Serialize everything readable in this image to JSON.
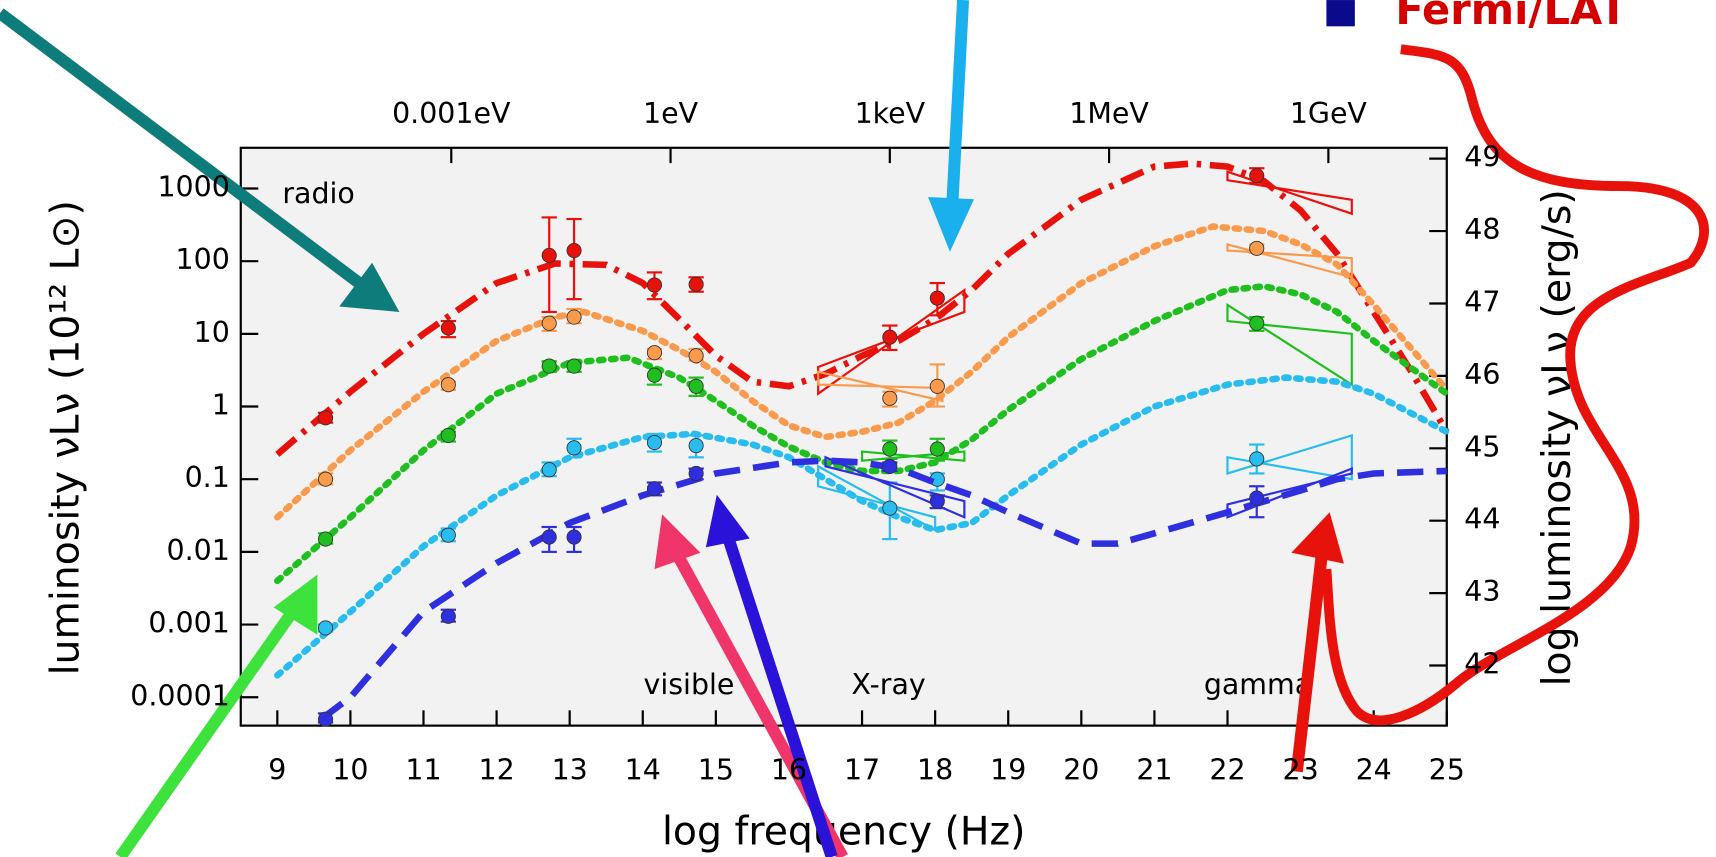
{
  "chart_data": {
    "type": "scatter",
    "x_label": "log frequency (Hz)",
    "y_label": "luminosity νLν (10¹² L⊙)",
    "y2_label": "log luminosity νLν (erg/s)",
    "log_y": true,
    "background": "#f2f2f2",
    "xlim": [
      8.5,
      25
    ],
    "xticks": [
      9,
      10,
      11,
      12,
      13,
      14,
      15,
      16,
      17,
      18,
      19,
      20,
      21,
      22,
      23,
      24,
      25
    ],
    "x2ticks": [
      {
        "value": 11.38,
        "label": "0.001eV"
      },
      {
        "value": 14.38,
        "label": "1eV"
      },
      {
        "value": 17.38,
        "label": "1keV"
      },
      {
        "value": 20.38,
        "label": "1MeV"
      },
      {
        "value": 23.38,
        "label": "1GeV"
      }
    ],
    "ylim": [
      4.07e-05,
      3630
    ],
    "yticks": [
      0.0001,
      0.001,
      0.01,
      0.1,
      1,
      10,
      100,
      1000
    ],
    "y2lim": [
      41.17,
      49.15
    ],
    "y2ticks": [
      42,
      43,
      44,
      45,
      46,
      47,
      48,
      49
    ],
    "annotations": [
      "radio",
      "visible",
      "X-ray",
      "gamma"
    ],
    "legend": {
      "label": "Fermi/LAT",
      "color": "#0a0a8c",
      "text_color": "#d40000"
    },
    "series": [
      {
        "color": "#e8120c",
        "x": [
          9.66,
          11.34,
          12.72,
          13.06,
          14.16,
          14.73,
          17.38,
          18.03,
          22.4
        ],
        "values": [
          0.7,
          12,
          120,
          140,
          47,
          48,
          9,
          31,
          1500
        ],
        "y_low": [
          0.6,
          9,
          20,
          30,
          30,
          38,
          6,
          18,
          1200
        ],
        "y_high": [
          0.82,
          15,
          400,
          380,
          70,
          60,
          13,
          50,
          1900
        ],
        "curve": {
          "dash": "dashdot",
          "x": [
            9,
            10,
            11,
            12,
            12.8,
            13.5,
            14,
            14.5,
            15,
            15.5,
            16,
            16.5,
            17,
            17.5,
            18,
            18.5,
            19,
            20,
            21,
            21.5,
            22,
            22.5,
            23,
            23.5,
            24,
            24.5,
            25
          ],
          "values": [
            0.22,
            1.6,
            10,
            50,
            93,
            89,
            50,
            16,
            5,
            2.2,
            1.9,
            2.8,
            5,
            8,
            16,
            40,
            126,
            700,
            2000,
            2200,
            2000,
            1260,
            500,
            126,
            20,
            3.2,
            0.45
          ]
        },
        "bowties": [
          {
            "x": [
              16.4,
              18.4
            ],
            "lo": [
              1.5,
              20
            ],
            "hi": [
              3.5,
              40
            ]
          },
          {
            "x": [
              22.0,
              23.7
            ],
            "lo": [
              1300,
              450
            ],
            "hi": [
              1700,
              700
            ]
          }
        ]
      },
      {
        "color": "#f99a4c",
        "x": [
          9.66,
          11.34,
          12.72,
          13.06,
          14.16,
          14.73,
          17.38,
          18.03,
          22.4
        ],
        "values": [
          0.1,
          2,
          14,
          17,
          5.5,
          5,
          1.3,
          1.9,
          150
        ],
        "y_low": [
          0.085,
          1.7,
          11,
          14,
          4.5,
          4.3,
          1.0,
          1.0,
          130
        ],
        "y_high": [
          0.12,
          2.2,
          17,
          22,
          6.2,
          6.2,
          1.6,
          3.8,
          170
        ],
        "curve": {
          "dash": "dot",
          "x": [
            9,
            10,
            11,
            12,
            12.8,
            13.2,
            14,
            14.5,
            15,
            15.5,
            16,
            16.5,
            17,
            17.5,
            18,
            18.5,
            19,
            20,
            21,
            21.8,
            22.5,
            23,
            23.5,
            24,
            25
          ],
          "values": [
            0.03,
            0.25,
            1.6,
            8,
            17,
            20,
            11,
            6,
            3,
            1.2,
            0.55,
            0.38,
            0.45,
            0.6,
            1.2,
            3,
            9,
            50,
            160,
            300,
            260,
            170,
            90,
            25,
            1.7
          ]
        },
        "bowties": [
          {
            "x": [
              16.4,
              18.1
            ],
            "lo": [
              2,
              1.2
            ],
            "hi": [
              3,
              1.8
            ]
          },
          {
            "x": [
              22.0,
              23.7
            ],
            "lo": [
              140,
              60
            ],
            "hi": [
              170,
              110
            ]
          }
        ]
      },
      {
        "color": "#1fbf1f",
        "x": [
          9.66,
          11.34,
          12.72,
          13.06,
          14.16,
          14.73,
          17.38,
          18.03,
          22.4
        ],
        "values": [
          0.015,
          0.4,
          3.6,
          3.6,
          2.7,
          1.9,
          0.26,
          0.26,
          14
        ],
        "y_low": [
          0.013,
          0.33,
          3.0,
          3.0,
          2.0,
          1.4,
          0.19,
          0.18,
          11
        ],
        "y_high": [
          0.018,
          0.45,
          4.2,
          4.2,
          3.4,
          2.5,
          0.34,
          0.36,
          17
        ],
        "curve": {
          "dash": "dot",
          "x": [
            9,
            10,
            11,
            12,
            13,
            13.8,
            14.5,
            15,
            15.5,
            16,
            16.5,
            17,
            17.5,
            18,
            18.5,
            19,
            20,
            21,
            22,
            22.5,
            23,
            23.5,
            24,
            25
          ],
          "values": [
            0.004,
            0.03,
            0.25,
            1.5,
            4,
            4.7,
            2.5,
            1.2,
            0.55,
            0.28,
            0.17,
            0.13,
            0.13,
            0.17,
            0.35,
            0.9,
            4.5,
            15,
            40,
            45,
            35,
            20,
            8,
            1.5
          ]
        },
        "bowties": [
          {
            "x": [
              17.0,
              18.4
            ],
            "lo": [
              0.18,
              0.18
            ],
            "hi": [
              0.24,
              0.24
            ]
          },
          {
            "x": [
              22.0,
              23.7
            ],
            "lo": [
              15,
              2
            ],
            "hi": [
              25,
              10
            ]
          }
        ]
      },
      {
        "color": "#29bcee",
        "x": [
          9.66,
          11.34,
          12.72,
          13.06,
          14.16,
          14.73,
          17.38,
          18.03,
          22.4
        ],
        "values": [
          0.0009,
          0.017,
          0.135,
          0.27,
          0.32,
          0.29,
          0.04,
          0.1,
          0.19
        ],
        "y_low": [
          0.0008,
          0.014,
          0.11,
          0.2,
          0.24,
          0.2,
          0.015,
          0.07,
          0.12
        ],
        "y_high": [
          0.001,
          0.021,
          0.17,
          0.36,
          0.42,
          0.4,
          0.09,
          0.12,
          0.3
        ],
        "curve": {
          "dash": "dot",
          "x": [
            9,
            10,
            11,
            12,
            13,
            14,
            14.7,
            15.5,
            16,
            16.5,
            17,
            17.5,
            18,
            18.5,
            19,
            20,
            21,
            22,
            22.8,
            23.5,
            24,
            25
          ],
          "values": [
            0.0002,
            0.0015,
            0.012,
            0.06,
            0.2,
            0.38,
            0.42,
            0.3,
            0.2,
            0.1,
            0.05,
            0.03,
            0.02,
            0.025,
            0.06,
            0.3,
            1,
            2,
            2.5,
            2.2,
            1.5,
            0.45
          ]
        },
        "bowties": [
          {
            "x": [
              16.4,
              18.0
            ],
            "lo": [
              0.08,
              0.02
            ],
            "hi": [
              0.15,
              0.03
            ]
          },
          {
            "x": [
              22.0,
              23.7
            ],
            "lo": [
              0.12,
              0.1
            ],
            "hi": [
              0.2,
              0.4
            ]
          }
        ]
      },
      {
        "color": "#2f2fe0",
        "x": [
          9.66,
          11.34,
          12.72,
          13.06,
          14.16,
          14.73,
          17.38,
          18.03,
          22.4
        ],
        "values": [
          5e-05,
          0.0013,
          0.016,
          0.016,
          0.074,
          0.12,
          0.15,
          0.05,
          0.055
        ],
        "y_low": [
          4.5e-05,
          0.0011,
          0.01,
          0.01,
          0.06,
          0.1,
          0.13,
          0.04,
          0.03
        ],
        "y_high": [
          6e-05,
          0.0016,
          0.022,
          0.022,
          0.09,
          0.14,
          0.17,
          0.06,
          0.08
        ],
        "curve": {
          "dash": "dash",
          "x": [
            9.6,
            10,
            11,
            12,
            13,
            14,
            15,
            16,
            16.5,
            17,
            17.5,
            18,
            18.5,
            19,
            20,
            20.5,
            21,
            22,
            23,
            23.5,
            24,
            25
          ],
          "values": [
            5e-05,
            0.0001,
            0.0015,
            0.007,
            0.025,
            0.06,
            0.12,
            0.17,
            0.18,
            0.17,
            0.14,
            0.09,
            0.06,
            0.035,
            0.013,
            0.013,
            0.018,
            0.035,
            0.07,
            0.1,
            0.12,
            0.13
          ]
        },
        "bowties": [
          {
            "x": [
              16.5,
              18.4
            ],
            "lo": [
              0.15,
              0.03
            ],
            "hi": [
              0.2,
              0.05
            ]
          },
          {
            "x": [
              22.0,
              23.7
            ],
            "lo": [
              0.03,
              0.12
            ],
            "hi": [
              0.045,
              0.14
            ]
          }
        ]
      }
    ]
  }
}
